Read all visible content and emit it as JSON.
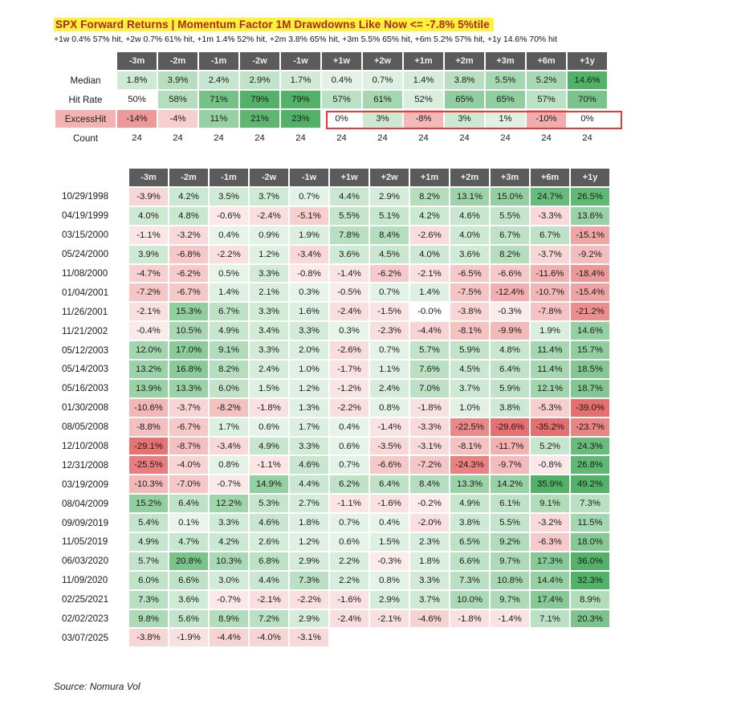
{
  "title": "SPX Forward Returns | Momentum Factor 1M Drawdowns Like Now <= -7.8% 5%tile",
  "subtitle": "+1w 0.4% 57% hit, +2w 0.7% 61% hit, +1m 1.4% 52% hit, +2m 3.8% 65% hit, +3m 5.5% 65% hit, +6m 5.2% 57% hit, +1y 14.6% 70% hit",
  "source": "Source: Nomura Vol",
  "colors": {
    "header_bg": "#5b5b5b",
    "positive": "#3aa853",
    "negative": "#e35b5b",
    "highlight_box": "#e8393a",
    "title_bg": "#fff23a",
    "title_text": "#b3261e"
  },
  "chart_data": {
    "type": "table",
    "columns": [
      "-3m",
      "-2m",
      "-1m",
      "-2w",
      "-1w",
      "+1w",
      "+2w",
      "+1m",
      "+2m",
      "+3m",
      "+6m",
      "+1y"
    ],
    "summary": [
      {
        "label": "Median",
        "values": [
          "1.8%",
          "3.9%",
          "2.4%",
          "2.9%",
          "1.7%",
          "0.4%",
          "0.7%",
          "1.4%",
          "3.8%",
          "5.5%",
          "5.2%",
          "14.6%"
        ]
      },
      {
        "label": "Hit Rate",
        "values": [
          "50%",
          "58%",
          "71%",
          "79%",
          "79%",
          "57%",
          "61%",
          "52%",
          "65%",
          "65%",
          "57%",
          "70%"
        ]
      },
      {
        "label": "ExcessHit",
        "values": [
          "-14%",
          "-4%",
          "11%",
          "21%",
          "23%",
          "0%",
          "3%",
          "-8%",
          "3%",
          "1%",
          "-10%",
          "0%"
        ]
      },
      {
        "label": "Count",
        "values": [
          "24",
          "24",
          "24",
          "24",
          "24",
          "24",
          "24",
          "24",
          "24",
          "24",
          "24",
          "24"
        ]
      }
    ],
    "rows": [
      {
        "date": "10/29/1998",
        "values": [
          "-3.9%",
          "4.2%",
          "3.5%",
          "3.7%",
          "0.7%",
          "4.4%",
          "2.9%",
          "8.2%",
          "13.1%",
          "15.0%",
          "24.7%",
          "26.5%"
        ]
      },
      {
        "date": "04/19/1999",
        "values": [
          "4.0%",
          "4.8%",
          "-0.6%",
          "-2.4%",
          "-5.1%",
          "5.5%",
          "5.1%",
          "4.2%",
          "4.6%",
          "5.5%",
          "-3.3%",
          "13.6%"
        ]
      },
      {
        "date": "03/15/2000",
        "values": [
          "-1.1%",
          "-3.2%",
          "0.4%",
          "0.9%",
          "1.9%",
          "7.8%",
          "8.4%",
          "-2.6%",
          "4.0%",
          "6.7%",
          "6.7%",
          "-15.1%"
        ]
      },
      {
        "date": "05/24/2000",
        "values": [
          "3.9%",
          "-6.8%",
          "-2.2%",
          "1.2%",
          "-3.4%",
          "3.6%",
          "4.5%",
          "4.0%",
          "3.6%",
          "8.2%",
          "-3.7%",
          "-9.2%"
        ]
      },
      {
        "date": "11/08/2000",
        "values": [
          "-4.7%",
          "-6.2%",
          "0.5%",
          "3.3%",
          "-0.8%",
          "-1.4%",
          "-6.2%",
          "-2.1%",
          "-6.5%",
          "-6.6%",
          "-11.6%",
          "-18.4%"
        ]
      },
      {
        "date": "01/04/2001",
        "values": [
          "-7.2%",
          "-6.7%",
          "1.4%",
          "2.1%",
          "0.3%",
          "-0.5%",
          "0.7%",
          "1.4%",
          "-7.5%",
          "-12.4%",
          "-10.7%",
          "-15.4%"
        ]
      },
      {
        "date": "11/26/2001",
        "values": [
          "-2.1%",
          "15.3%",
          "6.7%",
          "3.3%",
          "1.6%",
          "-2.4%",
          "-1.5%",
          "-0.0%",
          "-3.8%",
          "-0.3%",
          "-7.8%",
          "-21.2%"
        ]
      },
      {
        "date": "11/21/2002",
        "values": [
          "-0.4%",
          "10.5%",
          "4.9%",
          "3.4%",
          "3.3%",
          "0.3%",
          "-2.3%",
          "-4.4%",
          "-8.1%",
          "-9.9%",
          "1.9%",
          "14.6%"
        ]
      },
      {
        "date": "05/12/2003",
        "values": [
          "12.0%",
          "17.0%",
          "9.1%",
          "3.3%",
          "2.0%",
          "-2.6%",
          "0.7%",
          "5.7%",
          "5.9%",
          "4.8%",
          "11.4%",
          "15.7%"
        ]
      },
      {
        "date": "05/14/2003",
        "values": [
          "13.2%",
          "16.8%",
          "8.2%",
          "2.4%",
          "1.0%",
          "-1.7%",
          "1.1%",
          "7.6%",
          "4.5%",
          "6.4%",
          "11.4%",
          "18.5%"
        ]
      },
      {
        "date": "05/16/2003",
        "values": [
          "13.9%",
          "13.3%",
          "6.0%",
          "1.5%",
          "1.2%",
          "-1.2%",
          "2.4%",
          "7.0%",
          "3.7%",
          "5.9%",
          "12.1%",
          "18.7%"
        ]
      },
      {
        "date": "01/30/2008",
        "values": [
          "-10.6%",
          "-3.7%",
          "-8.2%",
          "-1.8%",
          "1.3%",
          "-2.2%",
          "0.8%",
          "-1.8%",
          "1.0%",
          "3.8%",
          "-5.3%",
          "-39.0%"
        ]
      },
      {
        "date": "08/05/2008",
        "values": [
          "-8.8%",
          "-6.7%",
          "1.7%",
          "0.6%",
          "1.7%",
          "0.4%",
          "-1.4%",
          "-3.3%",
          "-22.5%",
          "-29.6%",
          "-35.2%",
          "-23.7%"
        ]
      },
      {
        "date": "12/10/2008",
        "values": [
          "-29.1%",
          "-8.7%",
          "-3.4%",
          "4.9%",
          "3.3%",
          "0.6%",
          "-3.5%",
          "-3.1%",
          "-8.1%",
          "-11.7%",
          "5.2%",
          "24.3%"
        ]
      },
      {
        "date": "12/31/2008",
        "values": [
          "-25.5%",
          "-4.0%",
          "0.8%",
          "-1.1%",
          "4.6%",
          "0.7%",
          "-6.6%",
          "-7.2%",
          "-24.3%",
          "-9.7%",
          "-0.8%",
          "26.8%"
        ]
      },
      {
        "date": "03/19/2009",
        "values": [
          "-10.3%",
          "-7.0%",
          "-0.7%",
          "14.9%",
          "4.4%",
          "6.2%",
          "6.4%",
          "8.4%",
          "13.3%",
          "14.2%",
          "35.9%",
          "49.2%"
        ]
      },
      {
        "date": "08/04/2009",
        "values": [
          "15.2%",
          "6.4%",
          "12.2%",
          "5.3%",
          "2.7%",
          "-1.1%",
          "-1.6%",
          "-0.2%",
          "4.9%",
          "6.1%",
          "9.1%",
          "7.3%"
        ]
      },
      {
        "date": "09/09/2019",
        "values": [
          "5.4%",
          "0.1%",
          "3.3%",
          "4.6%",
          "1.8%",
          "0.7%",
          "0.4%",
          "-2.0%",
          "3.8%",
          "5.5%",
          "-3.2%",
          "11.5%"
        ]
      },
      {
        "date": "11/05/2019",
        "values": [
          "4.9%",
          "4.7%",
          "4.2%",
          "2.6%",
          "1.2%",
          "0.6%",
          "1.5%",
          "2.3%",
          "6.5%",
          "9.2%",
          "-6.3%",
          "18.0%"
        ]
      },
      {
        "date": "06/03/2020",
        "values": [
          "5.7%",
          "20.8%",
          "10.3%",
          "6.8%",
          "2.9%",
          "2.2%",
          "-0.3%",
          "1.8%",
          "6.6%",
          "9.7%",
          "17.3%",
          "36.0%"
        ]
      },
      {
        "date": "11/09/2020",
        "values": [
          "6.0%",
          "6.6%",
          "3.0%",
          "4.4%",
          "7.3%",
          "2.2%",
          "0.8%",
          "3.3%",
          "7.3%",
          "10.8%",
          "14.4%",
          "32.3%"
        ]
      },
      {
        "date": "02/25/2021",
        "values": [
          "7.3%",
          "3.6%",
          "-0.7%",
          "-2.1%",
          "-2.2%",
          "-1.6%",
          "2.9%",
          "3.7%",
          "10.0%",
          "9.7%",
          "17.4%",
          "8.9%"
        ]
      },
      {
        "date": "02/02/2023",
        "values": [
          "9.8%",
          "5.6%",
          "8.9%",
          "7.2%",
          "2.9%",
          "-2.4%",
          "-2.1%",
          "-4.6%",
          "-1.8%",
          "-1.4%",
          "7.1%",
          "20.3%"
        ]
      },
      {
        "date": "03/07/2025",
        "values": [
          "-3.8%",
          "-1.9%",
          "-4.4%",
          "-4.0%",
          "-3.1%",
          "",
          "",
          "",
          "",
          "",
          "",
          ""
        ]
      }
    ]
  }
}
